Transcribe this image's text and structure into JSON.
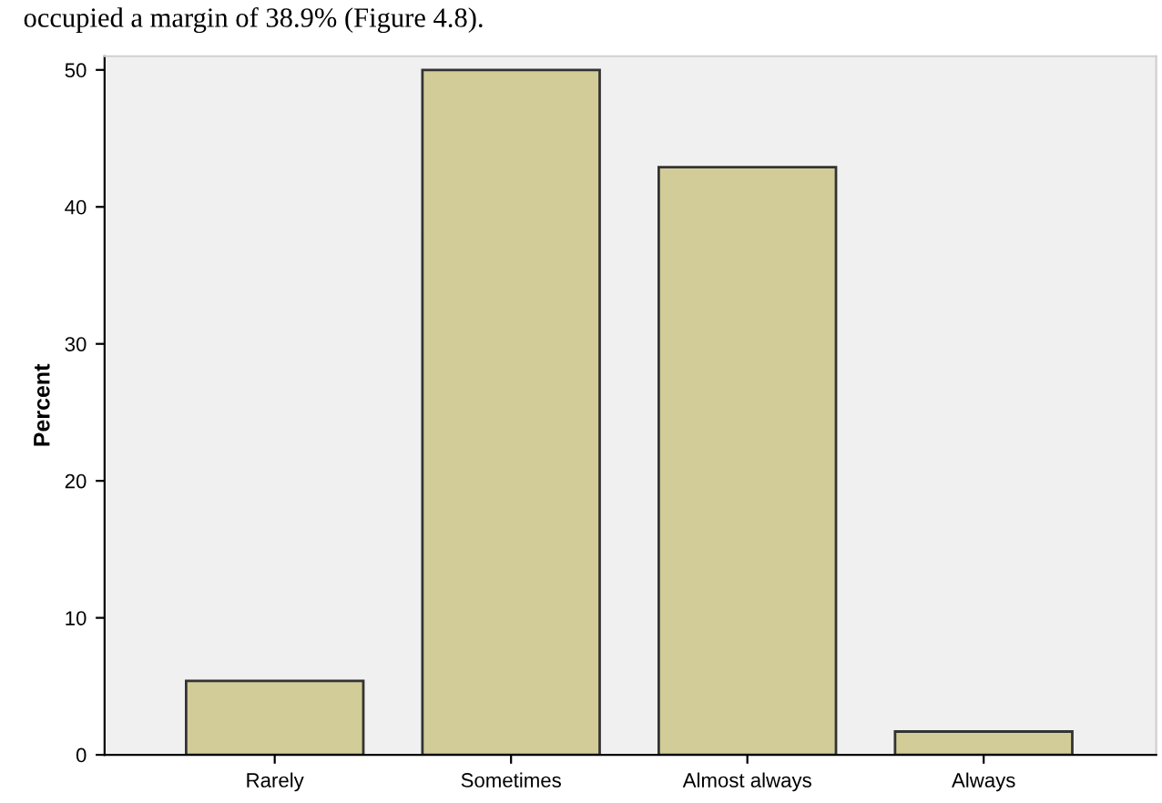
{
  "chart_data": {
    "type": "bar",
    "ylabel": "Percent",
    "categories": [
      "Rarely",
      "Sometimes",
      "Almost always",
      "Always"
    ],
    "values": [
      5.4,
      50.0,
      42.9,
      1.7
    ],
    "color": "#d2cd98",
    "ylim": [
      0,
      51
    ],
    "yticks": [
      0,
      10,
      20,
      30,
      40,
      50
    ],
    "grid": false,
    "annotations": [
      "occupied a margin of 38.9% (Figure 4.8)."
    ]
  }
}
